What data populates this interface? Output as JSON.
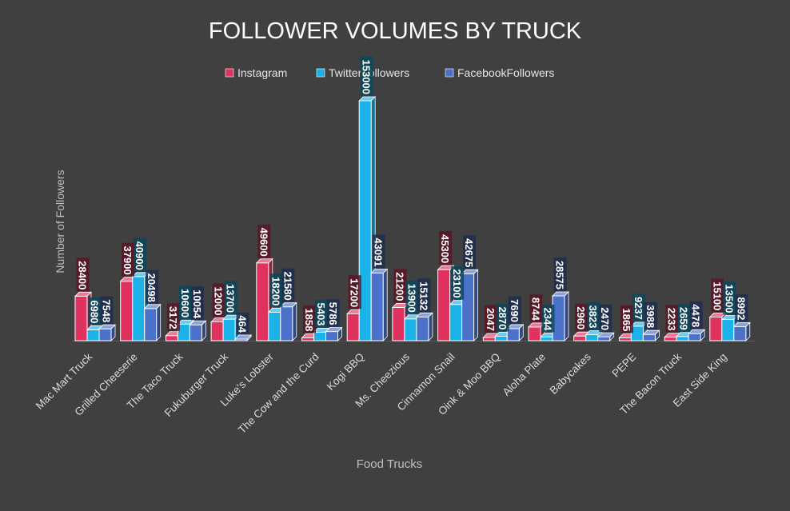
{
  "chart_data": {
    "type": "bar",
    "title": "FOLLOWER VOLUMES BY TRUCK",
    "xlabel": "Food Trucks",
    "ylabel": "Number of Followers",
    "legend_position": "top",
    "categories": [
      "Mac Mart Truck",
      "Grilled Cheeserie",
      "The Taco Truck",
      "Fukuburger Truck",
      "Luke's Lobster",
      "The Cow and the Curd",
      "Kogi BBQ",
      "Ms. Cheezious",
      "Cinnamon Snail",
      "Oink & Moo BBQ",
      "Aloha Plate",
      "Babycakes",
      "PEPE",
      "The Bacon Truck",
      "East Side King"
    ],
    "series": [
      {
        "name": "Instagram",
        "color": "#e0325f",
        "values": [
          28400,
          37900,
          3172,
          12000,
          49600,
          1858,
          17200,
          21200,
          45300,
          2047,
          8744,
          2960,
          1865,
          2233,
          15100
        ],
        "labels": [
          "28400",
          "37900",
          "3172",
          "12000",
          "49600",
          "1858",
          "17200",
          "21200",
          "45300",
          "2047",
          "8744",
          "2960",
          "1865",
          "2233",
          "15100"
        ]
      },
      {
        "name": "TwitterFollowers",
        "color": "#1ab2e8",
        "values": [
          6980,
          40900,
          10600,
          13700,
          18200,
          5403,
          153000,
          13900,
          23100,
          2870,
          2344,
          3823,
          9237,
          2659,
          13500
        ],
        "labels": [
          "6980",
          "40900",
          "10600",
          "13700",
          "18200",
          "5403",
          "153000",
          "13900",
          "23100",
          "2870",
          "2344",
          "3823",
          "9237",
          "2659",
          "13500"
        ]
      },
      {
        "name": "FacebookFollowers",
        "color": "#4b72c8",
        "values": [
          7548,
          20498,
          10054,
          464,
          21580,
          5786,
          43091,
          15132,
          42675,
          7690,
          28575,
          2470,
          3988,
          4478,
          8992
        ],
        "labels": [
          "7548",
          "20498",
          "10054",
          "464",
          "21580",
          "5786",
          "43091",
          "15132",
          "42675",
          "7690",
          "28575",
          "2470",
          "3988",
          "4478",
          "8992"
        ]
      }
    ],
    "colors": {
      "background": "#404040",
      "text": "#ffffff",
      "axis_text": "#d9d9d9"
    },
    "grid": false
  }
}
